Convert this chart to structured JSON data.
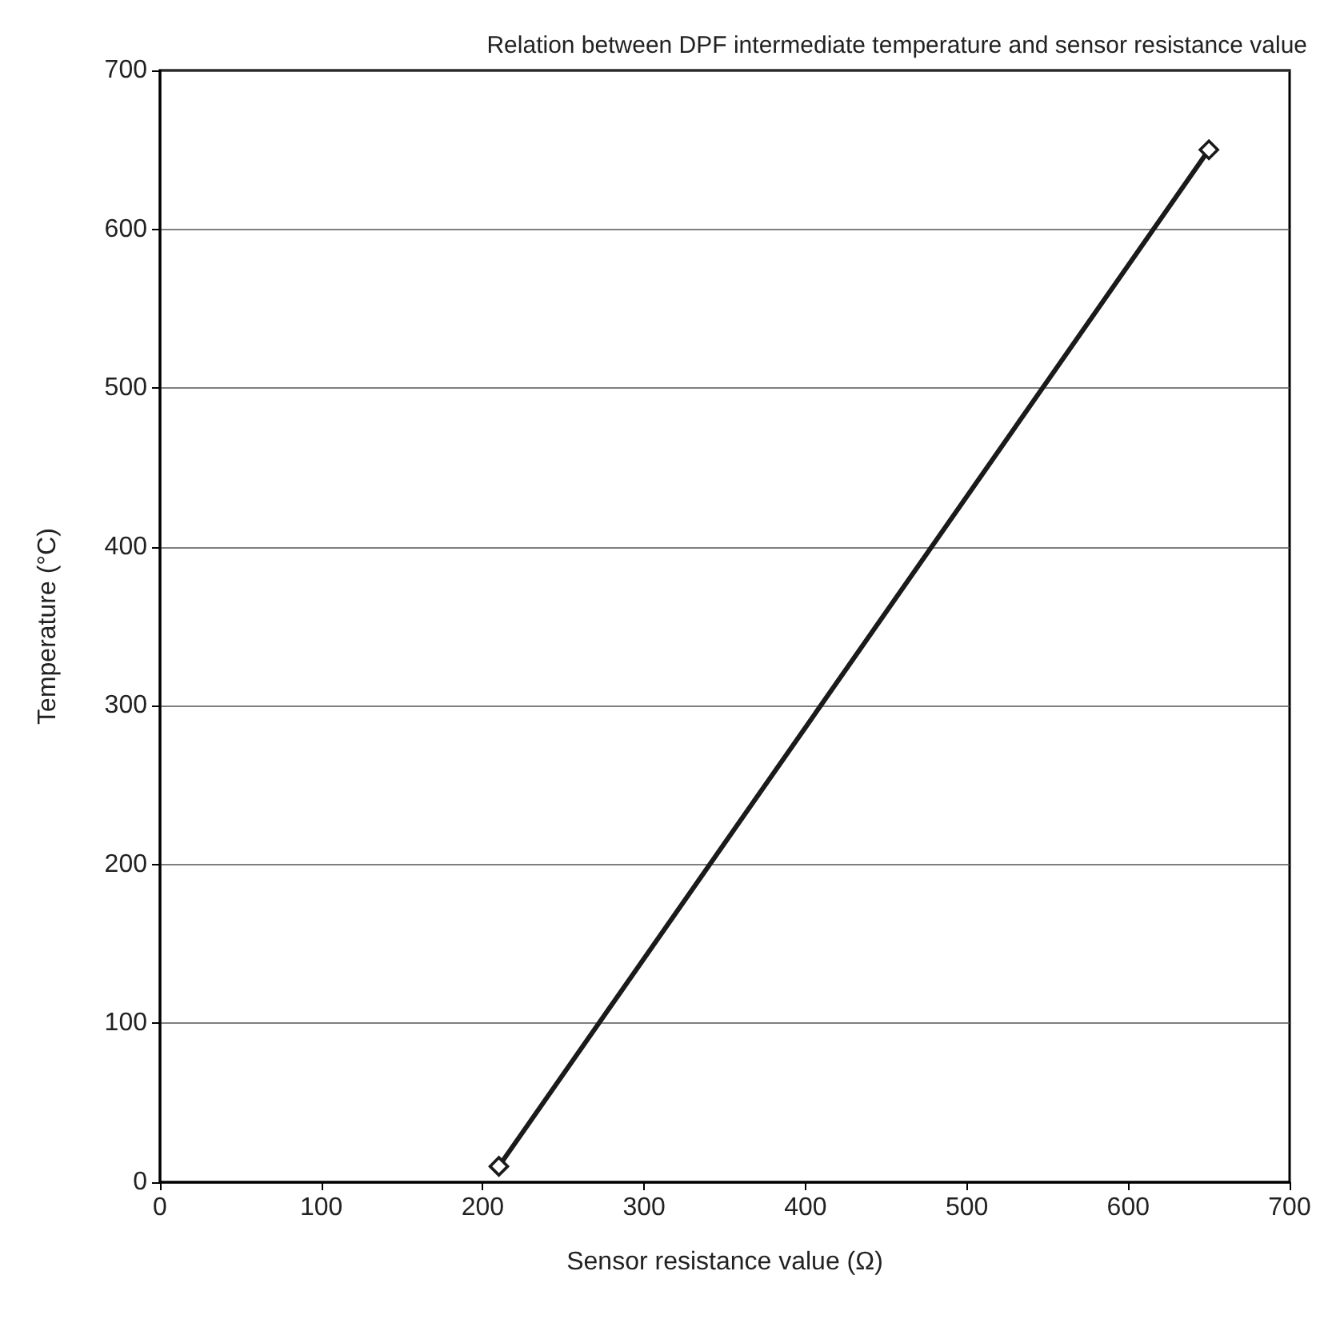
{
  "chart_data": {
    "type": "line",
    "title": "Relation between DPF intermediate temperature and sensor resistance value",
    "xlabel": "Sensor resistance value (Ω)",
    "ylabel": "Temperature (°C)",
    "x": [
      210,
      650
    ],
    "series": [
      {
        "color": "#1a1a1a",
        "values": [
          10,
          650
        ]
      }
    ],
    "xlim": [
      0,
      700
    ],
    "xticks": [
      0,
      100,
      200,
      300,
      400,
      500,
      600,
      700
    ],
    "ylim": [
      0,
      700
    ],
    "yticks": [
      0,
      100,
      200,
      300,
      400,
      500,
      600,
      700
    ],
    "grid": "y",
    "marker": "diamond",
    "line_style": "solid"
  }
}
